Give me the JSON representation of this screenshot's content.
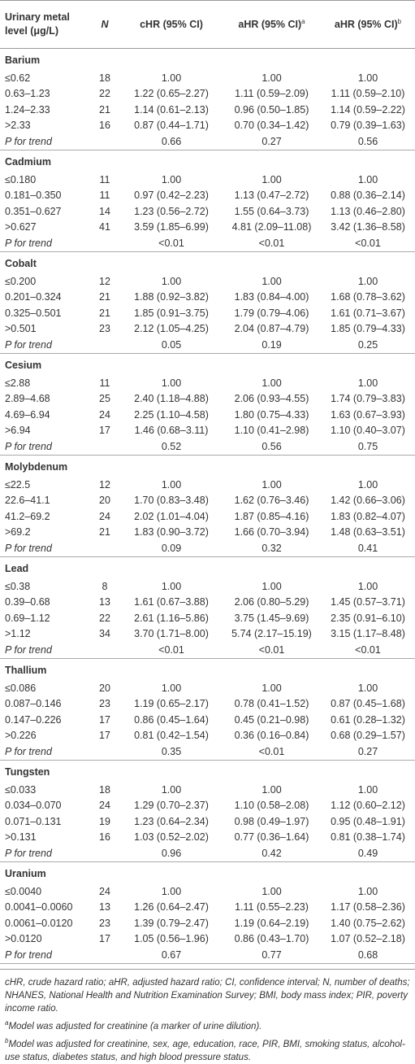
{
  "table": {
    "header": {
      "label": "Urinary metal level (μg/L)",
      "n": "N",
      "chr": "cHR (95% CI)",
      "ahr_a": "aHR (95% CI)",
      "ahr_a_sup": "a",
      "ahr_b": "aHR (95% CI)",
      "ahr_b_sup": "b"
    },
    "sections": [
      {
        "name": "Barium",
        "rows": [
          [
            "≤0.62",
            18,
            "1.00",
            "1.00",
            "1.00"
          ],
          [
            "0.63–1.23",
            22,
            "1.22 (0.65–2.27)",
            "1.11 (0.59–2.09)",
            "1.11 (0.59–2.10)"
          ],
          [
            "1.24–2.33",
            21,
            "1.14 (0.61–2.13)",
            "0.96 (0.50–1.85)",
            "1.14 (0.59–2.22)"
          ],
          [
            ">2.33",
            16,
            "0.87 (0.44–1.71)",
            "0.70 (0.34–1.42)",
            "0.79 (0.39–1.63)"
          ]
        ],
        "trend": [
          "P for trend",
          "0.66",
          "0.27",
          "0.56"
        ]
      },
      {
        "name": "Cadmium",
        "rows": [
          [
            "≤0.180",
            11,
            "1.00",
            "1.00",
            "1.00"
          ],
          [
            "0.181–0.350",
            11,
            "0.97 (0.42–2.23)",
            "1.13 (0.47–2.72)",
            "0.88 (0.36–2.14)"
          ],
          [
            "0.351–0.627",
            14,
            "1.23 (0.56–2.72)",
            "1.55 (0.64–3.73)",
            "1.13 (0.46–2.80)"
          ],
          [
            ">0.627",
            41,
            "3.59 (1.85–6.99)",
            "4.81 (2.09–11.08)",
            "3.42 (1.36–8.58)"
          ]
        ],
        "trend": [
          "P for trend",
          "<0.01",
          "<0.01",
          "<0.01"
        ]
      },
      {
        "name": "Cobalt",
        "rows": [
          [
            "≤0.200",
            12,
            "1.00",
            "1.00",
            "1.00"
          ],
          [
            "0.201–0.324",
            21,
            "1.88 (0.92–3.82)",
            "1.83 (0.84–4.00)",
            "1.68 (0.78–3.62)"
          ],
          [
            "0.325–0.501",
            21,
            "1.85 (0.91–3.75)",
            "1.79 (0.79–4.06)",
            "1.61 (0.71–3.67)"
          ],
          [
            ">0.501",
            23,
            "2.12 (1.05–4.25)",
            "2.04 (0.87–4.79)",
            "1.85 (0.79–4.33)"
          ]
        ],
        "trend": [
          "P for trend",
          "0.05",
          "0.19",
          "0.25"
        ]
      },
      {
        "name": "Cesium",
        "rows": [
          [
            "≤2.88",
            11,
            "1.00",
            "1.00",
            "1.00"
          ],
          [
            "2.89–4.68",
            25,
            "2.40 (1.18–4.88)",
            "2.06 (0.93–4.55)",
            "1.74 (0.79–3.83)"
          ],
          [
            "4.69–6.94",
            24,
            "2.25 (1.10–4.58)",
            "1.80 (0.75–4.33)",
            "1.63 (0.67–3.93)"
          ],
          [
            ">6.94",
            17,
            "1.46 (0.68–3.11)",
            "1.10 (0.41–2.98)",
            "1.10 (0.40–3.07)"
          ]
        ],
        "trend": [
          "P for trend",
          "0.52",
          "0.56",
          "0.75"
        ]
      },
      {
        "name": "Molybdenum",
        "rows": [
          [
            "≤22.5",
            12,
            "1.00",
            "1.00",
            "1.00"
          ],
          [
            "22.6–41.1",
            20,
            "1.70 (0.83–3.48)",
            "1.62 (0.76–3.46)",
            "1.42 (0.66–3.06)"
          ],
          [
            "41.2–69.2",
            24,
            "2.02 (1.01–4.04)",
            "1.87 (0.85–4.16)",
            "1.83 (0.82–4.07)"
          ],
          [
            ">69.2",
            21,
            "1.83 (0.90–3.72)",
            "1.66 (0.70–3.94)",
            "1.48 (0.63–3.51)"
          ]
        ],
        "trend": [
          "P for trend",
          "0.09",
          "0.32",
          "0.41"
        ]
      },
      {
        "name": "Lead",
        "rows": [
          [
            "≤0.38",
            8,
            "1.00",
            "1.00",
            "1.00"
          ],
          [
            "0.39–0.68",
            13,
            "1.61 (0.67–3.88)",
            "2.06 (0.80–5.29)",
            "1.45 (0.57–3.71)"
          ],
          [
            "0.69–1.12",
            22,
            "2.61 (1.16–5.86)",
            "3.75 (1.45–9.69)",
            "2.35 (0.91–6.10)"
          ],
          [
            ">1.12",
            34,
            "3.70 (1.71–8.00)",
            "5.74 (2.17–15.19)",
            "3.15 (1.17–8.48)"
          ]
        ],
        "trend": [
          "P for trend",
          "<0.01",
          "<0.01",
          "<0.01"
        ]
      },
      {
        "name": "Thallium",
        "rows": [
          [
            "≤0.086",
            20,
            "1.00",
            "1.00",
            "1.00"
          ],
          [
            "0.087–0.146",
            23,
            "1.19 (0.65–2.17)",
            "0.78 (0.41–1.52)",
            "0.87 (0.45–1.68)"
          ],
          [
            "0.147–0.226",
            17,
            "0.86 (0.45–1.64)",
            "0.45 (0.21–0.98)",
            "0.61 (0.28–1.32)"
          ],
          [
            ">0.226",
            17,
            "0.81 (0.42–1.54)",
            "0.36 (0.16–0.84)",
            "0.68 (0.29–1.57)"
          ]
        ],
        "trend": [
          "P for trend",
          "0.35",
          "<0.01",
          "0.27"
        ]
      },
      {
        "name": "Tungsten",
        "rows": [
          [
            "≤0.033",
            18,
            "1.00",
            "1.00",
            "1.00"
          ],
          [
            "0.034–0.070",
            24,
            "1.29 (0.70–2.37)",
            "1.10 (0.58–2.08)",
            "1.12 (0.60–2.12)"
          ],
          [
            "0.071–0.131",
            19,
            "1.23 (0.64–2.34)",
            "0.98 (0.49–1.97)",
            "0.95 (0.48–1.91)"
          ],
          [
            ">0.131",
            16,
            "1.03 (0.52–2.02)",
            "0.77 (0.36–1.64)",
            "0.81 (0.38–1.74)"
          ]
        ],
        "trend": [
          "P for trend",
          "0.96",
          "0.42",
          "0.49"
        ]
      },
      {
        "name": "Uranium",
        "rows": [
          [
            "≤0.0040",
            24,
            "1.00",
            "1.00",
            "1.00"
          ],
          [
            "0.0041–0.0060",
            13,
            "1.26 (0.64–2.47)",
            "1.11 (0.55–2.23)",
            "1.17 (0.58–2.36)"
          ],
          [
            "0.0061–0.0120",
            23,
            "1.39 (0.79–2.47)",
            "1.19 (0.64–2.19)",
            "1.40 (0.75–2.62)"
          ],
          [
            ">0.0120",
            17,
            "1.05 (0.56–1.96)",
            "0.86 (0.43–1.70)",
            "1.07 (0.52–2.18)"
          ]
        ],
        "trend": [
          "P for trend",
          "0.67",
          "0.77",
          "0.68"
        ]
      }
    ]
  },
  "notes": {
    "abbreviations": "cHR, crude hazard ratio; aHR, adjusted hazard ratio; CI, confidence interval; N, number of deaths; NHANES, National Health and Nutrition Examination Survey; BMI, body mass index; PIR, poverty income ratio.",
    "a_marker": "a",
    "a_text": "Model was adjusted for creatinine (a marker of urine dilution).",
    "b_marker": "b",
    "b_text": "Model was adjusted for creatinine, sex, age, education, race, PIR, BMI, smoking status, alcohol-use status, diabetes status, and high blood pressure status."
  }
}
